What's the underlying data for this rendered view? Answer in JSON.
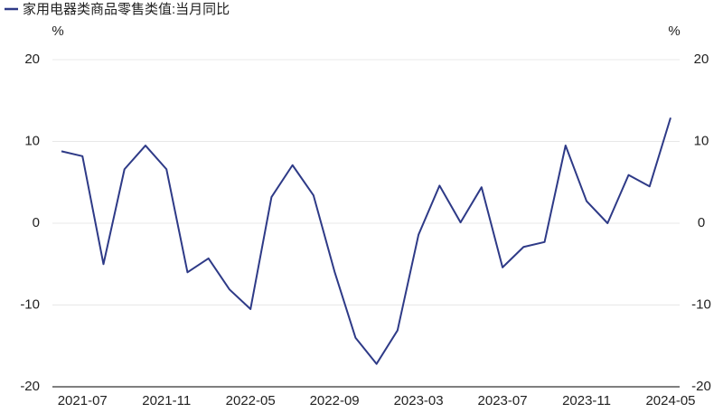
{
  "chart_data": {
    "type": "line",
    "categories": [
      null,
      "2021-07",
      null,
      null,
      null,
      "2021-11",
      null,
      null,
      null,
      "2022-05",
      null,
      null,
      null,
      "2022-09",
      null,
      null,
      null,
      "2023-03",
      null,
      null,
      null,
      "2023-07",
      null,
      null,
      null,
      "2023-11",
      null,
      null,
      null,
      "2024-05"
    ],
    "series": [
      {
        "name": "家用电器类商品零售类值:当月同比",
        "color": "#2e3a87",
        "values": [
          8.8,
          8.2,
          -5.0,
          6.6,
          9.5,
          6.6,
          -6.0,
          -4.3,
          -8.1,
          -10.5,
          3.2,
          7.1,
          3.4,
          -5.9,
          -14.0,
          -17.2,
          -13.1,
          -1.4,
          4.6,
          0.1,
          4.4,
          -5.4,
          -2.9,
          -2.3,
          9.5,
          2.7,
          0.0,
          5.9,
          4.5,
          12.9
        ]
      }
    ],
    "y_unit": "%",
    "y2_unit": "%",
    "ylim": [
      -20,
      20
    ],
    "yticks": [
      -20,
      -10,
      0,
      10,
      20
    ],
    "y2lim": [
      -20,
      20
    ],
    "y2ticks": [
      -20,
      -10,
      0,
      10,
      20
    ],
    "grid": true,
    "legend": "top-left"
  }
}
